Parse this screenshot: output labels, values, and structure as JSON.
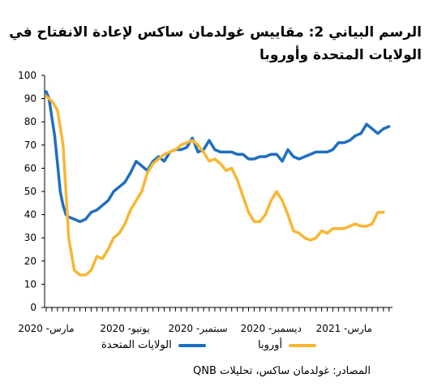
{
  "title_lines": [
    "الرسم البياني 2: مقاييس غولدمان ساكس لإعادة الانفتاح في",
    "الولايات المتحدة وأوروبا"
  ],
  "source": "المصادر: غولدمان ساكس، تحليلات QNB",
  "colors": {
    "us": "#1f6fbf",
    "europe": "#f7b733",
    "axis": "#000000"
  },
  "chart_data": {
    "type": "line",
    "title": "الرسم البياني 2: مقاييس غولدمان ساكس لإعادة الانفتاح في الولايات المتحدة وأوروبا",
    "ylim": [
      0,
      100
    ],
    "yticks": [
      0,
      10,
      20,
      30,
      40,
      50,
      60,
      70,
      80,
      90,
      100
    ],
    "xlim": [
      0,
      60
    ],
    "xticks": [
      {
        "pos": 0,
        "label": "مارس- 2020"
      },
      {
        "pos": 14,
        "label": "يونيو- 2020"
      },
      {
        "pos": 27,
        "label": "سبتمبر- 2020"
      },
      {
        "pos": 40,
        "label": "ديسمبر- 2020"
      },
      {
        "pos": 53,
        "label": "مارس- 2021"
      }
    ],
    "legend_position": "bottom",
    "series": [
      {
        "name": "الولايات المتحدة",
        "color": "#1f6fbf",
        "points": [
          [
            0,
            93
          ],
          [
            0.5,
            90
          ],
          [
            1,
            82
          ],
          [
            1.5,
            74
          ],
          [
            2,
            62
          ],
          [
            2.5,
            50
          ],
          [
            3,
            44
          ],
          [
            3.5,
            40
          ],
          [
            4,
            39
          ],
          [
            5,
            38
          ],
          [
            6,
            37
          ],
          [
            7,
            38
          ],
          [
            8,
            41
          ],
          [
            9,
            42
          ],
          [
            10,
            44
          ],
          [
            11,
            46
          ],
          [
            12,
            50
          ],
          [
            13,
            52
          ],
          [
            14,
            54
          ],
          [
            15,
            58
          ],
          [
            16,
            63
          ],
          [
            17,
            61
          ],
          [
            18,
            59
          ],
          [
            19,
            63
          ],
          [
            20,
            65
          ],
          [
            21,
            63
          ],
          [
            22,
            67
          ],
          [
            23,
            68
          ],
          [
            24,
            68
          ],
          [
            25,
            69
          ],
          [
            26,
            73
          ],
          [
            27,
            67
          ],
          [
            28,
            68
          ],
          [
            29,
            72
          ],
          [
            30,
            68
          ],
          [
            31,
            67
          ],
          [
            32,
            67
          ],
          [
            33,
            67
          ],
          [
            34,
            66
          ],
          [
            35,
            66
          ],
          [
            36,
            64
          ],
          [
            37,
            64
          ],
          [
            38,
            65
          ],
          [
            39,
            65
          ],
          [
            40,
            66
          ],
          [
            41,
            66
          ],
          [
            42,
            63
          ],
          [
            43,
            68
          ],
          [
            44,
            65
          ],
          [
            45,
            64
          ],
          [
            46,
            65
          ],
          [
            47,
            66
          ],
          [
            48,
            67
          ],
          [
            49,
            67
          ],
          [
            50,
            67
          ],
          [
            51,
            68
          ],
          [
            52,
            71
          ],
          [
            53,
            71
          ],
          [
            54,
            72
          ],
          [
            55,
            74
          ],
          [
            56,
            75
          ],
          [
            57,
            79
          ],
          [
            58,
            77
          ],
          [
            59,
            75
          ],
          [
            60,
            77
          ],
          [
            61,
            78
          ]
        ]
      },
      {
        "name": "أوروبا",
        "color": "#f7b733",
        "points": [
          [
            0,
            91
          ],
          [
            1,
            89
          ],
          [
            2,
            85
          ],
          [
            3,
            70
          ],
          [
            3.5,
            50
          ],
          [
            4,
            30
          ],
          [
            5,
            16
          ],
          [
            6,
            14
          ],
          [
            7,
            14
          ],
          [
            8,
            16
          ],
          [
            9,
            22
          ],
          [
            10,
            21
          ],
          [
            11,
            25
          ],
          [
            12,
            30
          ],
          [
            13,
            32
          ],
          [
            14,
            36
          ],
          [
            15,
            42
          ],
          [
            16,
            46
          ],
          [
            17,
            50
          ],
          [
            18,
            58
          ],
          [
            19,
            62
          ],
          [
            20,
            64
          ],
          [
            21,
            66
          ],
          [
            22,
            67
          ],
          [
            23,
            68
          ],
          [
            24,
            70
          ],
          [
            25,
            71
          ],
          [
            26,
            72
          ],
          [
            27,
            70
          ],
          [
            28,
            67
          ],
          [
            29,
            63
          ],
          [
            30,
            64
          ],
          [
            31,
            62
          ],
          [
            32,
            59
          ],
          [
            33,
            60
          ],
          [
            34,
            55
          ],
          [
            35,
            48
          ],
          [
            36,
            41
          ],
          [
            37,
            37
          ],
          [
            38,
            37
          ],
          [
            39,
            40
          ],
          [
            40,
            46
          ],
          [
            41,
            50
          ],
          [
            42,
            46
          ],
          [
            43,
            40
          ],
          [
            44,
            33
          ],
          [
            45,
            32
          ],
          [
            46,
            30
          ],
          [
            47,
            29
          ],
          [
            48,
            30
          ],
          [
            49,
            33
          ],
          [
            50,
            32
          ],
          [
            51,
            34
          ],
          [
            52,
            34
          ],
          [
            53,
            34
          ],
          [
            54,
            35
          ],
          [
            55,
            36
          ],
          [
            56,
            35
          ],
          [
            57,
            35
          ],
          [
            58,
            36
          ],
          [
            59,
            41
          ],
          [
            60,
            41
          ]
        ]
      }
    ]
  }
}
